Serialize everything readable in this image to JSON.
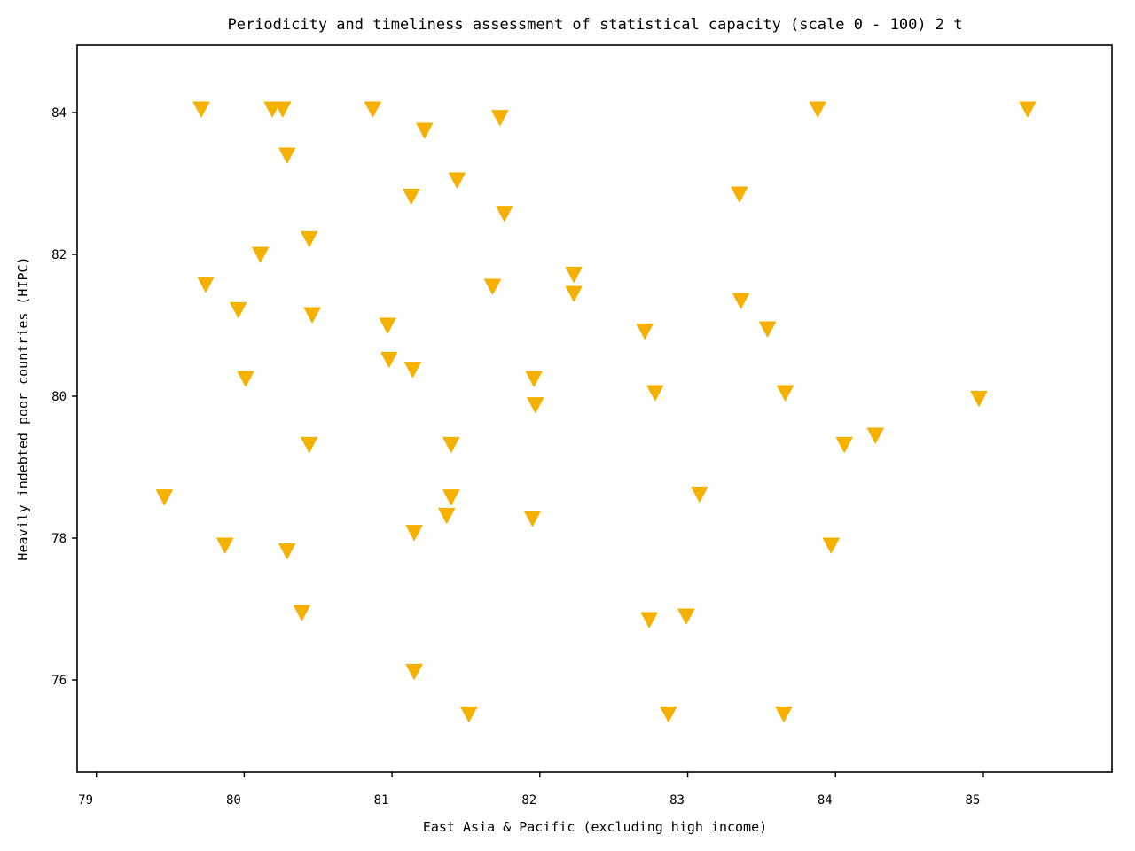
{
  "chart_data": {
    "type": "scatter",
    "title": "Periodicity and timeliness assessment of statistical capacity (scale 0 - 100) 2 t",
    "xlabel": "East Asia & Pacific (excluding high income)",
    "ylabel": "Heavily indebted poor countries (HIPC)",
    "xlim": [
      78.87,
      85.87
    ],
    "ylim": [
      74.7,
      84.95
    ],
    "xticks": [
      79,
      80,
      81,
      82,
      83,
      84,
      85
    ],
    "yticks": [
      76,
      78,
      80,
      82,
      84
    ],
    "grid": false,
    "marker": "triangle-down",
    "color": "#f5b000",
    "points": [
      [
        79.71,
        84.05
      ],
      [
        80.19,
        84.05
      ],
      [
        80.26,
        84.05
      ],
      [
        80.87,
        84.05
      ],
      [
        83.88,
        84.05
      ],
      [
        85.3,
        84.05
      ],
      [
        81.73,
        83.93
      ],
      [
        81.22,
        83.75
      ],
      [
        80.29,
        83.4
      ],
      [
        81.44,
        83.05
      ],
      [
        81.13,
        82.82
      ],
      [
        83.35,
        82.85
      ],
      [
        81.76,
        82.58
      ],
      [
        80.44,
        82.22
      ],
      [
        80.11,
        82.0
      ],
      [
        82.23,
        81.72
      ],
      [
        79.74,
        81.58
      ],
      [
        81.68,
        81.55
      ],
      [
        82.23,
        81.45
      ],
      [
        83.36,
        81.35
      ],
      [
        79.96,
        81.22
      ],
      [
        80.46,
        81.15
      ],
      [
        80.97,
        81.0
      ],
      [
        82.71,
        80.92
      ],
      [
        83.54,
        80.95
      ],
      [
        80.98,
        80.52
      ],
      [
        81.14,
        80.38
      ],
      [
        80.01,
        80.25
      ],
      [
        81.96,
        80.25
      ],
      [
        82.78,
        80.05
      ],
      [
        83.66,
        80.05
      ],
      [
        81.97,
        79.88
      ],
      [
        84.97,
        79.97
      ],
      [
        84.27,
        79.45
      ],
      [
        80.44,
        79.32
      ],
      [
        81.4,
        79.32
      ],
      [
        84.06,
        79.32
      ],
      [
        79.46,
        78.58
      ],
      [
        81.4,
        78.58
      ],
      [
        83.08,
        78.62
      ],
      [
        81.37,
        78.32
      ],
      [
        81.95,
        78.28
      ],
      [
        81.15,
        78.08
      ],
      [
        79.87,
        77.9
      ],
      [
        80.29,
        77.82
      ],
      [
        83.97,
        77.9
      ],
      [
        80.39,
        76.95
      ],
      [
        82.99,
        76.9
      ],
      [
        82.74,
        76.85
      ],
      [
        81.15,
        76.12
      ],
      [
        81.52,
        75.52
      ],
      [
        82.87,
        75.52
      ],
      [
        83.65,
        75.52
      ]
    ]
  }
}
